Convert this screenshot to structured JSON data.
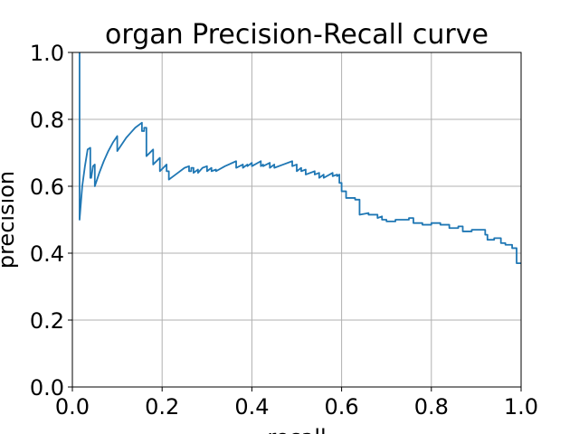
{
  "chart_data": {
    "type": "line",
    "title": "organ Precision-Recall curve",
    "xlabel": "recall",
    "ylabel": "precision",
    "xlim": [
      0.0,
      1.0
    ],
    "ylim": [
      0.0,
      1.0
    ],
    "xticks": [
      "0.0",
      "0.2",
      "0.4",
      "0.6",
      "0.8",
      "1.0"
    ],
    "yticks": [
      "0.0",
      "0.2",
      "0.4",
      "0.6",
      "0.8",
      "1.0"
    ],
    "grid": true,
    "line_color": "#1f77b4",
    "series": [
      {
        "x": [
          0.016,
          0.016,
          0.016,
          0.022,
          0.028,
          0.034,
          0.04,
          0.04,
          0.042,
          0.046,
          0.05,
          0.05,
          0.06,
          0.07,
          0.08,
          0.09,
          0.1,
          0.1,
          0.11,
          0.12,
          0.13,
          0.14,
          0.155,
          0.155,
          0.16,
          0.16,
          0.165,
          0.165,
          0.18,
          0.18,
          0.195,
          0.195,
          0.21,
          0.21,
          0.215,
          0.215,
          0.23,
          0.25,
          0.26,
          0.26,
          0.265,
          0.265,
          0.27,
          0.27,
          0.28,
          0.28,
          0.29,
          0.3,
          0.3,
          0.31,
          0.31,
          0.32,
          0.32,
          0.34,
          0.365,
          0.365,
          0.38,
          0.38,
          0.39,
          0.39,
          0.4,
          0.4,
          0.42,
          0.42,
          0.425,
          0.425,
          0.44,
          0.44,
          0.45,
          0.45,
          0.47,
          0.49,
          0.49,
          0.5,
          0.5,
          0.51,
          0.51,
          0.52,
          0.52,
          0.54,
          0.54,
          0.55,
          0.55,
          0.56,
          0.56,
          0.58,
          0.58,
          0.59,
          0.59,
          0.595,
          0.595,
          0.6,
          0.6,
          0.61,
          0.61,
          0.63,
          0.63,
          0.64,
          0.64,
          0.66,
          0.66,
          0.68,
          0.68,
          0.69,
          0.69,
          0.7,
          0.7,
          0.72,
          0.72,
          0.75,
          0.75,
          0.76,
          0.76,
          0.78,
          0.78,
          0.8,
          0.8,
          0.82,
          0.82,
          0.84,
          0.84,
          0.86,
          0.86,
          0.87,
          0.87,
          0.89,
          0.89,
          0.92,
          0.92,
          0.925,
          0.925,
          0.94,
          0.94,
          0.955,
          0.955,
          0.965,
          0.965,
          0.98,
          0.98,
          0.99,
          0.99,
          1.0
        ],
        "y": [
          1.0,
          0.5,
          0.5,
          0.6,
          0.66,
          0.71,
          0.715,
          0.625,
          0.625,
          0.66,
          0.665,
          0.6,
          0.64,
          0.675,
          0.705,
          0.73,
          0.75,
          0.705,
          0.725,
          0.745,
          0.76,
          0.775,
          0.79,
          0.765,
          0.765,
          0.775,
          0.775,
          0.69,
          0.71,
          0.665,
          0.685,
          0.645,
          0.665,
          0.645,
          0.645,
          0.62,
          0.635,
          0.655,
          0.66,
          0.645,
          0.645,
          0.655,
          0.655,
          0.64,
          0.65,
          0.64,
          0.655,
          0.66,
          0.645,
          0.655,
          0.645,
          0.65,
          0.645,
          0.66,
          0.675,
          0.655,
          0.665,
          0.655,
          0.665,
          0.66,
          0.67,
          0.66,
          0.675,
          0.66,
          0.665,
          0.66,
          0.67,
          0.655,
          0.665,
          0.655,
          0.665,
          0.675,
          0.66,
          0.665,
          0.645,
          0.655,
          0.645,
          0.65,
          0.635,
          0.645,
          0.635,
          0.64,
          0.625,
          0.635,
          0.625,
          0.64,
          0.63,
          0.635,
          0.63,
          0.635,
          0.61,
          0.61,
          0.585,
          0.585,
          0.565,
          0.565,
          0.56,
          0.56,
          0.515,
          0.52,
          0.515,
          0.515,
          0.505,
          0.51,
          0.5,
          0.5,
          0.495,
          0.495,
          0.5,
          0.5,
          0.505,
          0.505,
          0.49,
          0.49,
          0.485,
          0.485,
          0.49,
          0.49,
          0.485,
          0.485,
          0.475,
          0.475,
          0.48,
          0.48,
          0.465,
          0.465,
          0.47,
          0.47,
          0.455,
          0.455,
          0.44,
          0.44,
          0.445,
          0.445,
          0.43,
          0.43,
          0.425,
          0.425,
          0.415,
          0.415,
          0.37,
          0.37
        ]
      }
    ]
  }
}
